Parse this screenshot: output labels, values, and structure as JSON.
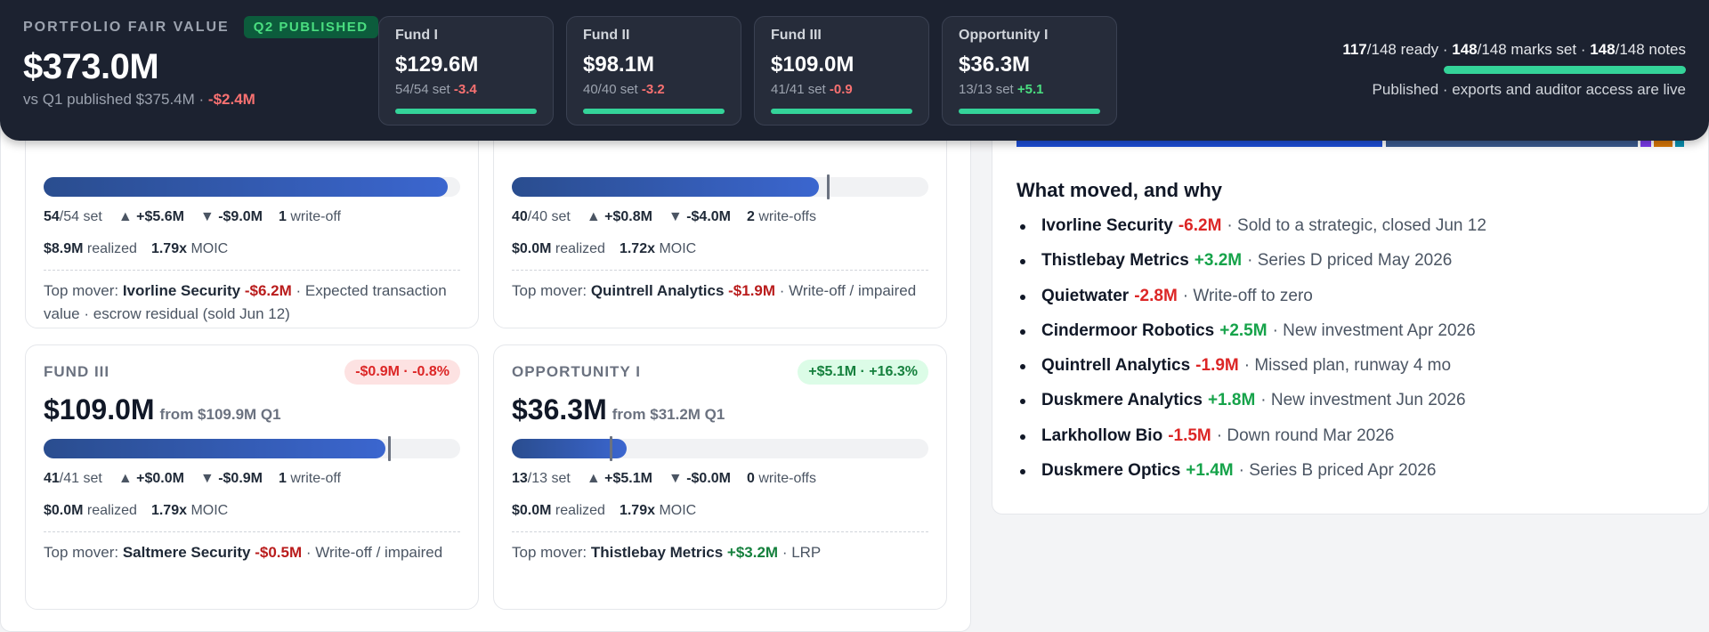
{
  "header": {
    "portfolio_label": "PORTFOLIO FAIR VALUE",
    "badge": "Q2 PUBLISHED",
    "value": "$373.0M",
    "sub_prefix": "vs Q1 published $375.4M ·",
    "sub_delta": "-$2.4M",
    "status": {
      "ready_n": "117",
      "ready_rest": "/148 ready ·",
      "marks_n": "148",
      "marks_rest": "/148 marks set ·",
      "notes_n": "148",
      "notes_rest": "/148 notes",
      "progress": 1.0,
      "note": "Published · exports and auditor access are live"
    },
    "fund_cards": [
      {
        "name": "Fund I",
        "value": "$129.6M",
        "set": "54/54 set",
        "delta": "-3.4"
      },
      {
        "name": "Fund II",
        "value": "$98.1M",
        "set": "40/40 set",
        "delta": "-3.2"
      },
      {
        "name": "Fund III",
        "value": "$109.0M",
        "set": "41/41 set",
        "delta": "-0.9"
      },
      {
        "name": "Opportunity I",
        "value": "$36.3M",
        "set": "13/13 set",
        "delta": "+5.1"
      }
    ]
  },
  "funds": [
    {
      "bar_fill": 0.97,
      "tick": null,
      "set_n": "54",
      "set_rest": "/54 set",
      "up": "+$5.6M",
      "down": "-$9.0M",
      "wo_n": "1",
      "wo_label": "write-off",
      "realized": "$8.9M",
      "realized_label": "realized",
      "moic": "1.79x",
      "moic_label": "MOIC",
      "mover_label": "Top mover:",
      "mover_name": "Ivorline Security",
      "mover_delta": "-$6.2M",
      "mover_note": "· Expected transaction value · escrow residual (sold Jun 12)"
    },
    {
      "bar_fill": 0.737,
      "tick": 0.757,
      "set_n": "40",
      "set_rest": "/40 set",
      "up": "+$0.8M",
      "down": "-$4.0M",
      "wo_n": "2",
      "wo_label": "write-offs",
      "realized": "$0.0M",
      "realized_label": "realized",
      "moic": "1.72x",
      "moic_label": "MOIC",
      "mover_label": "Top mover:",
      "mover_name": "Quintrell Analytics",
      "mover_delta": "-$1.9M",
      "mover_note": "· Write-off / impaired"
    },
    {
      "name": "FUND III",
      "pill": "-$0.9M · -0.8%",
      "pill_type": "neg",
      "value": "$109.0M",
      "from": "from $109.9M Q1",
      "bar_fill": 0.82,
      "tick": 0.827,
      "set_n": "41",
      "set_rest": "/41 set",
      "up": "+$0.0M",
      "down": "-$0.9M",
      "wo_n": "1",
      "wo_label": "write-off",
      "realized": "$0.0M",
      "realized_label": "realized",
      "moic": "1.79x",
      "moic_label": "MOIC",
      "mover_label": "Top mover:",
      "mover_name": "Saltmere Security",
      "mover_delta": "-$0.5M",
      "mover_note": "· Write-off / impaired"
    },
    {
      "name": "OPPORTUNITY I",
      "pill": "+$5.1M · +16.3%",
      "pill_type": "pos",
      "value": "$36.3M",
      "from": "from $31.2M Q1",
      "bar_fill": 0.275,
      "tick": 0.236,
      "set_n": "13",
      "set_rest": "/13 set",
      "up": "+$5.1M",
      "down": "-$0.0M",
      "wo_n": "0",
      "wo_label": "write-offs",
      "realized": "$0.0M",
      "realized_label": "realized",
      "moic": "1.79x",
      "moic_label": "MOIC",
      "mover_label": "Top mover:",
      "mover_name": "Thistlebay Metrics",
      "mover_delta": "+$3.2M",
      "mover_note": "· LRP"
    }
  ],
  "composition": [
    {
      "share": 0.548,
      "color": "#1d4ed8"
    },
    {
      "share": 0.005,
      "color": "#ffffff"
    },
    {
      "share": 0.378,
      "color": "#3b5b8f"
    },
    {
      "share": 0.004,
      "color": "#ffffff"
    },
    {
      "share": 0.015,
      "color": "#7c3aed"
    },
    {
      "share": 0.005,
      "color": "#ffffff"
    },
    {
      "share": 0.028,
      "color": "#d97706"
    },
    {
      "share": 0.004,
      "color": "#ffffff"
    },
    {
      "share": 0.013,
      "color": "#0891b2"
    }
  ],
  "what_moved": {
    "title": "What moved, and why",
    "items": [
      {
        "name": "Ivorline Security",
        "delta": "-6.2M",
        "dir": "neg",
        "note": "· Sold to a strategic, closed Jun 12"
      },
      {
        "name": "Thistlebay Metrics",
        "delta": "+3.2M",
        "dir": "pos",
        "note": "· Series D priced May 2026"
      },
      {
        "name": "Quietwater",
        "delta": "-2.8M",
        "dir": "neg",
        "note": "· Write-off to zero"
      },
      {
        "name": "Cindermoor Robotics",
        "delta": "+2.5M",
        "dir": "pos",
        "note": "· New investment Apr 2026"
      },
      {
        "name": "Quintrell Analytics",
        "delta": "-1.9M",
        "dir": "neg",
        "note": "· Missed plan, runway 4 mo"
      },
      {
        "name": "Duskmere Analytics",
        "delta": "+1.8M",
        "dir": "pos",
        "note": "· New investment Jun 2026"
      },
      {
        "name": "Larkhollow Bio",
        "delta": "-1.5M",
        "dir": "neg",
        "note": "· Down round Mar 2026"
      },
      {
        "name": "Duskmere Optics",
        "delta": "+1.4M",
        "dir": "pos",
        "note": "· Series B priced Apr 2026"
      }
    ]
  }
}
